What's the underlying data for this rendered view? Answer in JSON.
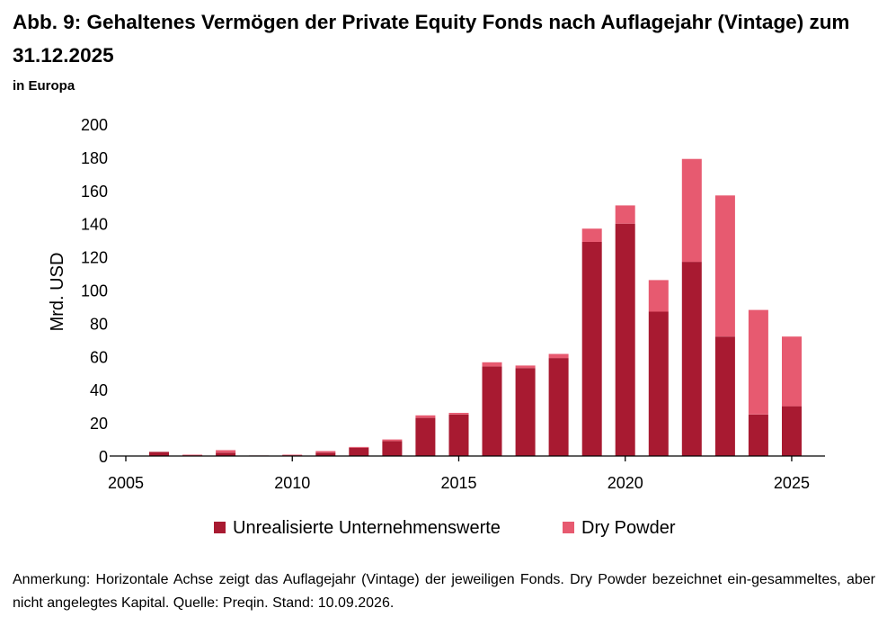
{
  "header": {
    "title": "Abb. 9: Gehaltenes Vermögen der Private Equity Fonds nach Auflagejahr (Vintage) zum 31.12.2025",
    "subtitle": "in Europa"
  },
  "footer": {
    "note": "Anmerkung: Horizontale Achse zeigt das Auflagejahr (Vintage) der jeweiligen Fonds. Dry Powder bezeichnet ein-gesammeltes, aber nicht angelegtes Kapital. Quelle: Preqin. Stand: 10.09.2026."
  },
  "colors": {
    "unrealized": "#A81A31",
    "dry_powder": "#E75A70",
    "axis": "#000000"
  },
  "chart_data": {
    "type": "bar",
    "stacked": true,
    "title": "Abb. 9: Gehaltenes Vermögen der Private Equity Fonds nach Auflagejahr (Vintage) zum 31.12.2025",
    "subtitle": "in Europa",
    "xlabel": "",
    "ylabel": "Mrd. USD",
    "xlim": [
      2005,
      2026
    ],
    "ylim": [
      0,
      200
    ],
    "xticks": [
      2005,
      2010,
      2015,
      2020,
      2025
    ],
    "yticks": [
      0,
      20,
      40,
      60,
      80,
      100,
      120,
      140,
      160,
      180,
      200
    ],
    "grid": false,
    "legend_position": "bottom",
    "categories": [
      2006,
      2007,
      2008,
      2009,
      2010,
      2011,
      2012,
      2013,
      2014,
      2015,
      2016,
      2017,
      2018,
      2019,
      2020,
      2021,
      2022,
      2023,
      2024,
      2025
    ],
    "series": [
      {
        "name": "Unrealisierte Unternehmenswerte",
        "color": "#A81A31",
        "values": [
          2.5,
          0.5,
          2,
          0.3,
          0.5,
          2,
          5,
          9,
          23,
          25,
          54,
          53,
          59,
          129,
          140,
          87,
          117,
          72,
          25,
          30
        ]
      },
      {
        "name": "Dry Powder",
        "color": "#E75A70",
        "values": [
          0,
          0.3,
          1.5,
          0,
          0.3,
          1,
          0.5,
          1,
          1.5,
          1,
          2.5,
          1.5,
          2.5,
          8,
          11,
          19,
          62,
          85,
          63,
          42
        ]
      }
    ]
  }
}
